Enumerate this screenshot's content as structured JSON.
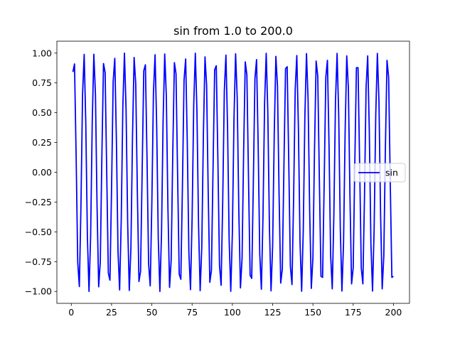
{
  "chart_data": {
    "type": "line",
    "title": "sin from 1.0 to 200.0",
    "xlabel": "",
    "ylabel": "",
    "function": "sin",
    "x_range": [
      1.0,
      200.0
    ],
    "samples": 200,
    "xlim": [
      -8.95,
      209.95
    ],
    "ylim": [
      -1.1,
      1.1
    ],
    "xticks": [
      0,
      25,
      50,
      75,
      100,
      125,
      150,
      175,
      200
    ],
    "yticks": [
      -1.0,
      -0.75,
      -0.5,
      -0.25,
      0.0,
      0.25,
      0.5,
      0.75,
      1.0
    ],
    "xtick_labels": [
      "0",
      "25",
      "50",
      "75",
      "100",
      "125",
      "150",
      "175",
      "200"
    ],
    "ytick_labels": [
      "−1.00",
      "−0.75",
      "−0.50",
      "−0.25",
      "0.00",
      "0.25",
      "0.50",
      "0.75",
      "1.00"
    ],
    "grid": false,
    "legend": {
      "placement": "center-right",
      "entries": [
        "sin"
      ]
    },
    "series": [
      {
        "name": "sin",
        "color": "#0000ff"
      }
    ]
  }
}
